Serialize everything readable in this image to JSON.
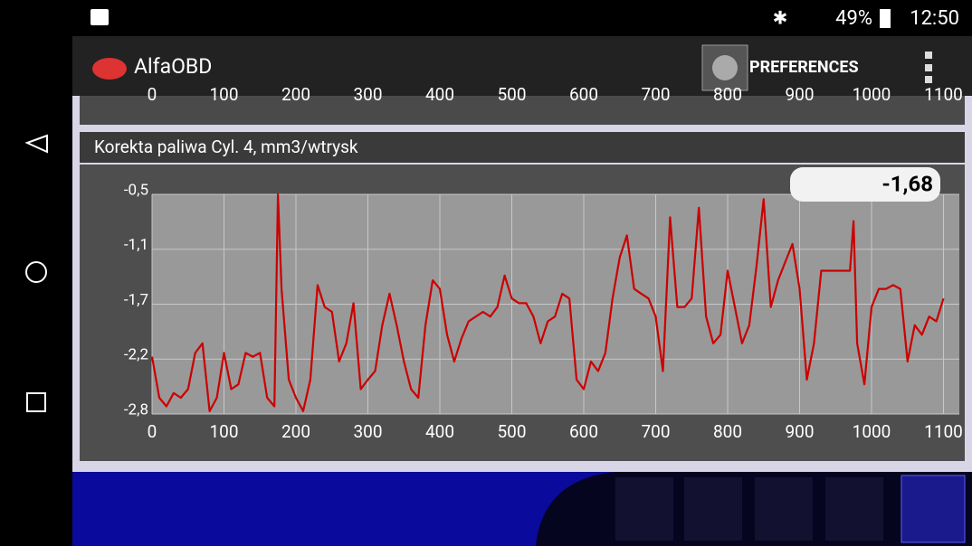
{
  "status_bar": {
    "battery": "49%",
    "time": "12:50"
  },
  "app_bar": {
    "app_name": "AlfaOBD",
    "button": "PREFERENCES"
  },
  "previous_chart": {
    "xticks": [
      0,
      100,
      200,
      300,
      400,
      500,
      600,
      700,
      800,
      900,
      1000,
      1100
    ]
  },
  "panel": {
    "title": "Korekta paliwa Cyl. 4, mm3/wtrysk",
    "current_value": "-1,68"
  },
  "chart_data": {
    "type": "line",
    "color": "#cc0000",
    "grid": true,
    "xlim": [
      0,
      1122
    ],
    "xticks": [
      0,
      100,
      200,
      300,
      400,
      500,
      600,
      700,
      800,
      900,
      1000,
      1100
    ],
    "ylim": [
      -2.8,
      -0.5
    ],
    "yticks": [
      {
        "value": -2.8,
        "label": "-2,8"
      },
      {
        "value": -2.225,
        "label": "-2,2"
      },
      {
        "value": -1.65,
        "label": "-1,7"
      },
      {
        "value": -1.075,
        "label": "-1,1"
      },
      {
        "value": -0.5,
        "label": "-0,5"
      }
    ],
    "x": [
      0,
      10,
      20,
      30,
      40,
      50,
      60,
      70,
      80,
      90,
      100,
      110,
      120,
      130,
      140,
      150,
      160,
      170,
      175,
      180,
      190,
      200,
      210,
      220,
      230,
      240,
      250,
      260,
      270,
      280,
      290,
      300,
      310,
      320,
      330,
      340,
      350,
      360,
      370,
      380,
      390,
      400,
      410,
      420,
      430,
      440,
      450,
      460,
      470,
      480,
      490,
      500,
      510,
      520,
      530,
      540,
      550,
      560,
      570,
      580,
      590,
      600,
      610,
      620,
      630,
      640,
      650,
      660,
      670,
      680,
      690,
      700,
      710,
      720,
      730,
      740,
      750,
      760,
      770,
      780,
      790,
      800,
      810,
      820,
      830,
      840,
      850,
      860,
      870,
      880,
      890,
      900,
      910,
      920,
      930,
      940,
      950,
      960,
      970,
      975,
      980,
      990,
      1000,
      1010,
      1020,
      1030,
      1040,
      1050,
      1060,
      1070,
      1080,
      1090,
      1100
    ],
    "values": [
      -2.2,
      -2.63,
      -2.72,
      -2.58,
      -2.63,
      -2.54,
      -2.16,
      -2.06,
      -2.77,
      -2.63,
      -2.16,
      -2.54,
      -2.49,
      -2.16,
      -2.2,
      -2.16,
      -2.63,
      -2.72,
      -0.5,
      -1.49,
      -2.44,
      -2.63,
      -2.77,
      -2.44,
      -1.45,
      -1.68,
      -1.73,
      -2.25,
      -2.06,
      -1.64,
      -2.54,
      -2.44,
      -2.35,
      -1.87,
      -1.54,
      -1.87,
      -2.25,
      -2.54,
      -2.63,
      -1.87,
      -1.4,
      -1.49,
      -1.97,
      -2.25,
      -2.01,
      -1.83,
      -1.78,
      -1.73,
      -1.78,
      -1.68,
      -1.35,
      -1.59,
      -1.64,
      -1.64,
      -1.78,
      -2.06,
      -1.83,
      -1.78,
      -1.54,
      -1.59,
      -2.44,
      -2.54,
      -2.25,
      -2.35,
      -2.16,
      -1.59,
      -1.16,
      -0.93,
      -1.49,
      -1.54,
      -1.59,
      -1.78,
      -2.35,
      -0.74,
      -1.68,
      -1.68,
      -1.59,
      -0.64,
      -1.78,
      -2.06,
      -1.97,
      -1.3,
      -1.68,
      -2.06,
      -1.87,
      -1.26,
      -0.55,
      -1.68,
      -1.4,
      -1.21,
      -1.02,
      -1.49,
      -2.44,
      -2.06,
      -1.3,
      -1.3,
      -1.3,
      -1.3,
      -1.3,
      -0.78,
      -2.06,
      -2.49,
      -1.68,
      -1.49,
      -1.49,
      -1.45,
      -1.49,
      -2.25,
      -1.87,
      -1.97,
      -1.78,
      -1.83,
      -1.59
    ]
  }
}
